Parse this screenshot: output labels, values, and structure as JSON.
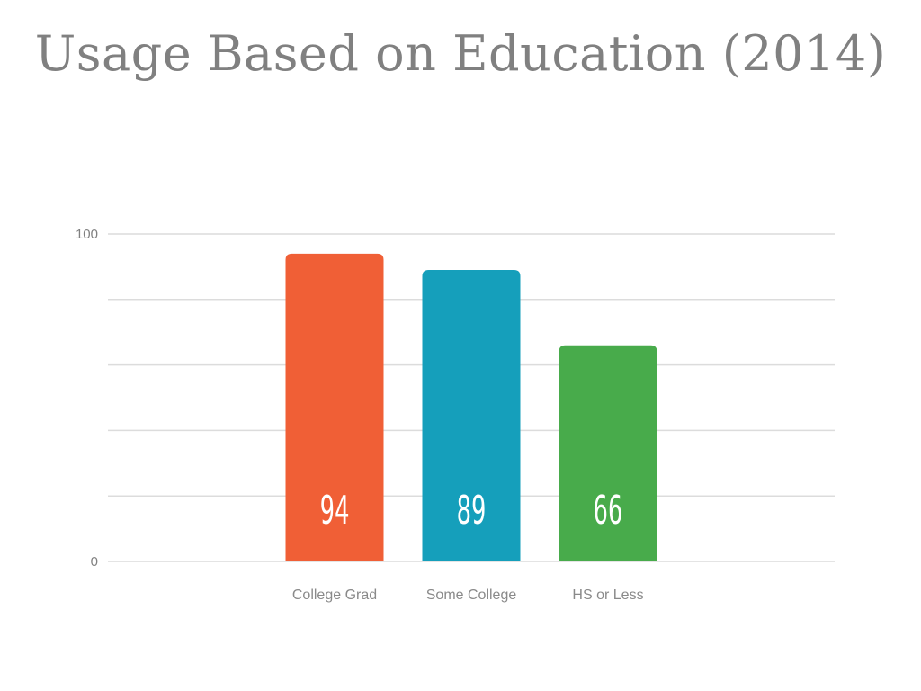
{
  "chart_data": {
    "type": "bar",
    "title": "Usage Based on Education (2014)",
    "categories": [
      "College Grad",
      "Some College",
      "HS or Less"
    ],
    "values": [
      94,
      89,
      66
    ],
    "colors": [
      "#f05f36",
      "#159fbb",
      "#48ab4b"
    ],
    "ylim": [
      0,
      100
    ],
    "yticks": [
      "0",
      "100"
    ],
    "gridlines": 6,
    "grid": true,
    "legend": "none"
  }
}
